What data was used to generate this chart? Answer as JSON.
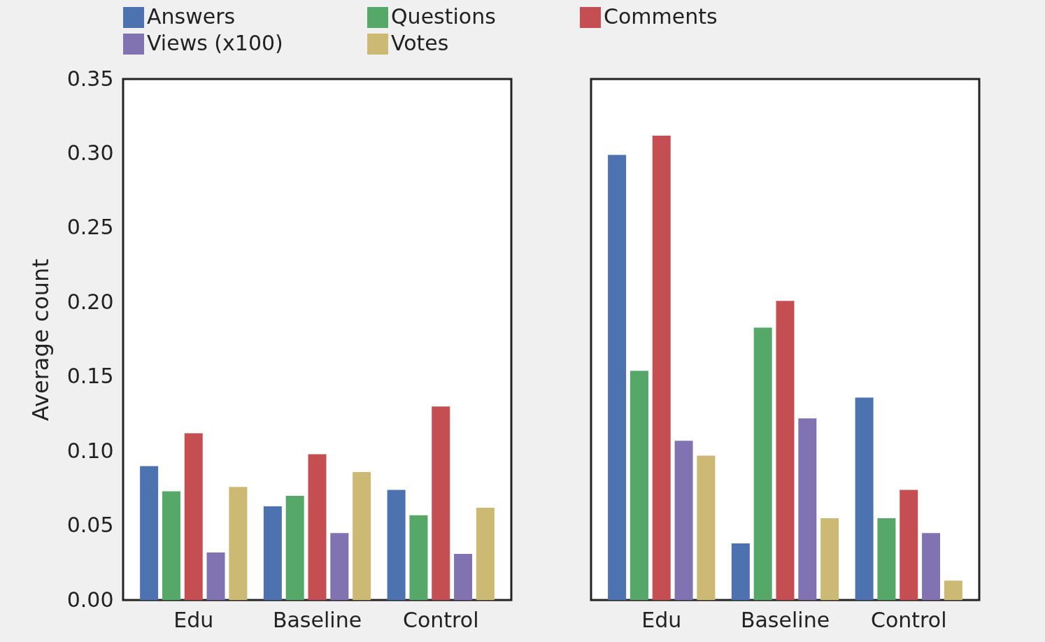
{
  "chart_data": [
    {
      "type": "bar",
      "ylabel": "Average count",
      "categories": [
        "Edu",
        "Baseline",
        "Control"
      ],
      "ylim": [
        0,
        0.35
      ],
      "yticks": [
        {
          "value": 0,
          "label": "0.00"
        },
        {
          "value": 0.05,
          "label": "0.05"
        },
        {
          "value": 0.1,
          "label": "0.10"
        },
        {
          "value": 0.15,
          "label": "0.15"
        },
        {
          "value": 0.2,
          "label": "0.20"
        },
        {
          "value": 0.25,
          "label": "0.25"
        },
        {
          "value": 0.3,
          "label": "0.30"
        },
        {
          "value": 0.35,
          "label": "0.35"
        }
      ],
      "grid": false,
      "legend": "top",
      "series": [
        {
          "name": "Answers",
          "color": "#4c72b0",
          "values": [
            0.09,
            0.063,
            0.074
          ]
        },
        {
          "name": "Questions",
          "color": "#55a868",
          "values": [
            0.073,
            0.07,
            0.057
          ]
        },
        {
          "name": "Comments",
          "color": "#c44e52",
          "values": [
            0.112,
            0.098,
            0.13
          ]
        },
        {
          "name": "Views (x100)",
          "color": "#8172b2",
          "values": [
            0.032,
            0.045,
            0.031
          ]
        },
        {
          "name": "Votes",
          "color": "#ccb974",
          "values": [
            0.076,
            0.086,
            0.062
          ]
        }
      ]
    },
    {
      "type": "bar",
      "categories": [
        "Edu",
        "Baseline",
        "Control"
      ],
      "ylim": [
        0,
        0.35
      ],
      "grid": false,
      "legend": "top",
      "tick_labels": "x",
      "series": [
        {
          "name": "Answers",
          "color": "#4c72b0",
          "values": [
            0.299,
            0.038,
            0.136
          ]
        },
        {
          "name": "Questions",
          "color": "#55a868",
          "values": [
            0.154,
            0.183,
            0.055
          ]
        },
        {
          "name": "Comments",
          "color": "#c44e52",
          "values": [
            0.312,
            0.201,
            0.074
          ]
        },
        {
          "name": "Views (x100)",
          "color": "#8172b2",
          "values": [
            0.107,
            0.122,
            0.045
          ]
        },
        {
          "name": "Votes",
          "color": "#ccb974",
          "values": [
            0.097,
            0.055,
            0.013
          ]
        }
      ]
    }
  ]
}
